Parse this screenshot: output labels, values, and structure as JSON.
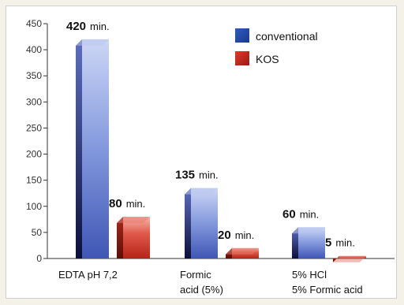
{
  "chart_data": {
    "type": "bar",
    "title": "",
    "xlabel": "",
    "ylabel": "",
    "ylim": [
      0,
      450
    ],
    "yticks": [
      0,
      50,
      100,
      150,
      200,
      250,
      300,
      350,
      400,
      450
    ],
    "grid": false,
    "legend_position": "top-right",
    "categories": [
      [
        "EDTA pH 7,2"
      ],
      [
        "Formic",
        "acid (5%)"
      ],
      [
        "5% HCl",
        "5% Formic acid"
      ]
    ],
    "series": [
      {
        "name": "conventional",
        "values": [
          420,
          135,
          60
        ],
        "labels": [
          "420",
          "135",
          "60"
        ],
        "color": "#3f6bc4"
      },
      {
        "name": "KOS",
        "values": [
          80,
          20,
          5
        ],
        "labels": [
          "80",
          "20",
          "5"
        ],
        "color": "#d93a2b"
      }
    ],
    "value_unit": "min."
  }
}
